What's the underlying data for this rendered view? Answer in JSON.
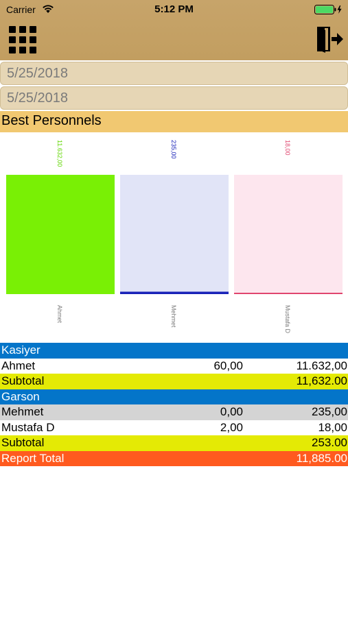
{
  "status_bar": {
    "carrier": "Carrier",
    "time": "5:12 PM",
    "battery_color": "#4cd964"
  },
  "toolbar": {
    "menu_icon": "grid-menu-icon",
    "exit_icon": "exit-door-icon"
  },
  "filters": {
    "start_date": "5/25/2018",
    "end_date": "5/25/2018"
  },
  "section": {
    "title": "Best Personnels"
  },
  "chart_data": {
    "type": "bar",
    "categories": [
      "Ahmet",
      "Mehmet",
      "Mustafa D"
    ],
    "values": [
      11632.0,
      235.0,
      18.0
    ],
    "value_labels": [
      "11.632,00",
      "235,00",
      "18,00"
    ],
    "colors": [
      "#79f005",
      "#e1e4f7",
      "#fde6ee"
    ],
    "accent_colors": [
      "#79f005",
      "#1a23b8",
      "#e0456e"
    ],
    "label_colors": [
      "#5fd600",
      "#1a23b8",
      "#e0456e"
    ],
    "ylim": [
      0,
      11632
    ],
    "grid": false,
    "title": "",
    "xlabel": "",
    "ylabel": ""
  },
  "report": {
    "groups": [
      {
        "name": "Kasiyer",
        "rows": [
          {
            "name": "Ahmet",
            "qty": "60,00",
            "amount": "11.632,00"
          }
        ],
        "subtotal_label": "Subtotal",
        "subtotal": "11,632.00"
      },
      {
        "name": "Garson",
        "rows": [
          {
            "name": "Mehmet",
            "qty": "0,00",
            "amount": "235,00"
          },
          {
            "name": "Mustafa D",
            "qty": "2,00",
            "amount": "18,00"
          }
        ],
        "subtotal_label": "Subtotal",
        "subtotal": "253.00"
      }
    ],
    "total_label": "Report Total",
    "total": "11,885.00"
  },
  "colors": {
    "header": "#c29e60",
    "group_header": "#0475c9",
    "subtotal": "#e4ea05",
    "total": "#ff5a1f",
    "section_title": "#f1c871"
  }
}
